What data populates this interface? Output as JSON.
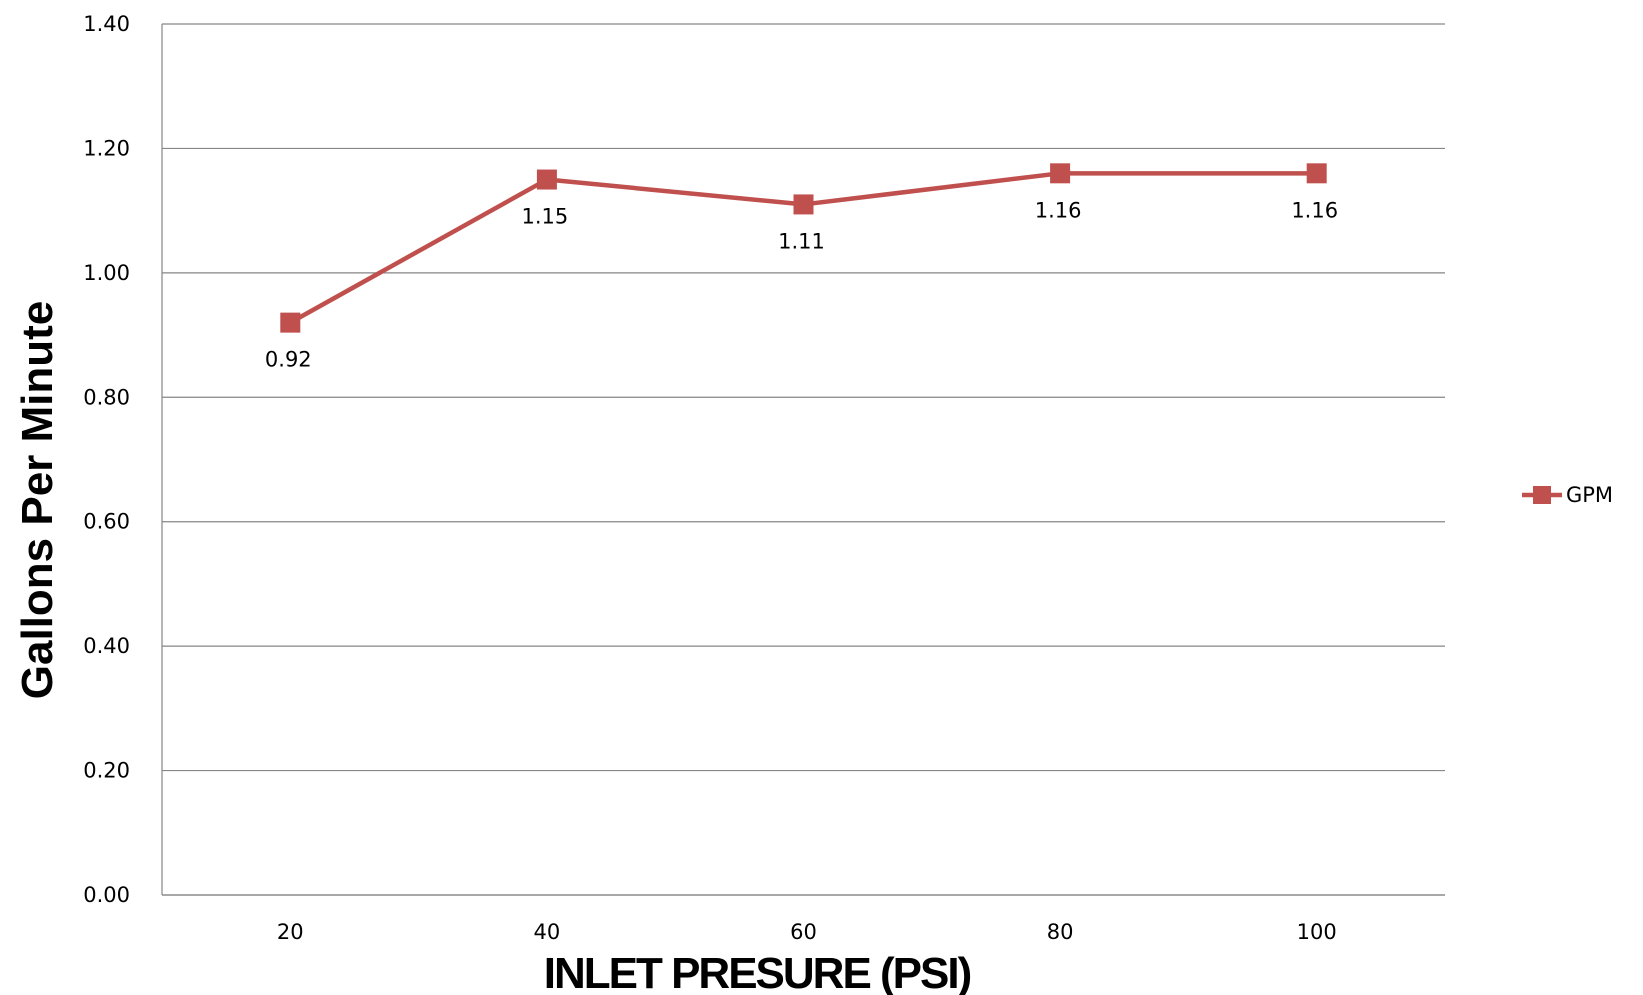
{
  "chart_data": {
    "type": "line",
    "title": "",
    "xlabel": "INLET PRESURE (PSI)",
    "ylabel": "Gallons Per Minute",
    "categories": [
      "20",
      "40",
      "60",
      "80",
      "100"
    ],
    "series": [
      {
        "name": "GPM",
        "values": [
          0.92,
          1.15,
          1.11,
          1.16,
          1.16
        ],
        "data_labels": [
          "0.92",
          "1.15",
          "1.11",
          "1.16",
          "1.16"
        ],
        "color": "#c0504d",
        "marker": "square"
      }
    ],
    "ylim": [
      0,
      1.4
    ],
    "yticks": [
      0,
      0.2,
      0.4,
      0.6,
      0.8,
      1.0,
      1.2,
      1.4
    ],
    "ytick_labels": [
      "0.00",
      "0.20",
      "0.40",
      "0.60",
      "0.80",
      "1.00",
      "1.20",
      "1.40"
    ],
    "grid": true,
    "legend": "right",
    "gridline_color": "#868686"
  }
}
